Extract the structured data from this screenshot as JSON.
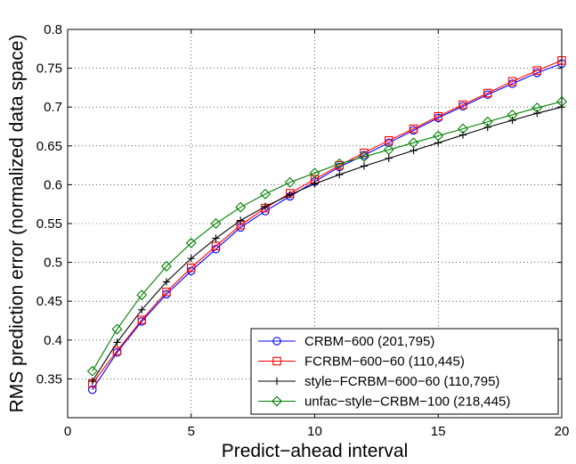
{
  "chart_data": {
    "type": "line",
    "title": "",
    "xlabel": "Predict−ahead interval",
    "ylabel": "RMS prediction error (normalized data space)",
    "xlim": [
      0,
      20
    ],
    "ylim": [
      0.3,
      0.8
    ],
    "xticks": [
      0,
      5,
      10,
      15,
      20
    ],
    "yticks": [
      0.35,
      0.4,
      0.45,
      0.5,
      0.55,
      0.6,
      0.65,
      0.7,
      0.75,
      0.8
    ],
    "x_tick_labels": [
      "0",
      "5",
      "10",
      "15",
      "20"
    ],
    "y_tick_labels": [
      "0.35",
      "0.4",
      "0.45",
      "0.5",
      "0.55",
      "0.6",
      "0.65",
      "0.7",
      "0.75",
      "0.8"
    ],
    "grid": true,
    "legend_position": "bottom-right",
    "x": [
      1,
      2,
      3,
      4,
      5,
      6,
      7,
      8,
      9,
      10,
      11,
      12,
      13,
      14,
      15,
      16,
      17,
      18,
      19,
      20
    ],
    "series": [
      {
        "name": "CRBM−600 (201,795)",
        "color": "#0000ff",
        "marker": "circle",
        "values": [
          0.336,
          0.384,
          0.424,
          0.459,
          0.489,
          0.517,
          0.545,
          0.566,
          0.585,
          0.604,
          0.623,
          0.638,
          0.654,
          0.67,
          0.686,
          0.701,
          0.716,
          0.73,
          0.744,
          0.756
        ]
      },
      {
        "name": "FCRBM−600−60 (110,445)",
        "color": "#ff0000",
        "marker": "square",
        "values": [
          0.344,
          0.386,
          0.426,
          0.462,
          0.493,
          0.521,
          0.548,
          0.57,
          0.589,
          0.607,
          0.625,
          0.641,
          0.657,
          0.672,
          0.688,
          0.703,
          0.718,
          0.733,
          0.747,
          0.76
        ]
      },
      {
        "name": "style−FCRBM−600−60 (110,795)",
        "color": "#000000",
        "marker": "plus",
        "values": [
          0.347,
          0.397,
          0.439,
          0.475,
          0.505,
          0.531,
          0.554,
          0.572,
          0.587,
          0.601,
          0.613,
          0.624,
          0.634,
          0.644,
          0.654,
          0.664,
          0.674,
          0.683,
          0.692,
          0.7
        ]
      },
      {
        "name": "unfac−style−CRBM−100 (218,445)",
        "color": "#008000",
        "marker": "diamond",
        "values": [
          0.36,
          0.414,
          0.458,
          0.495,
          0.525,
          0.55,
          0.571,
          0.588,
          0.603,
          0.615,
          0.627,
          0.636,
          0.645,
          0.654,
          0.663,
          0.672,
          0.681,
          0.69,
          0.699,
          0.707
        ]
      }
    ]
  }
}
